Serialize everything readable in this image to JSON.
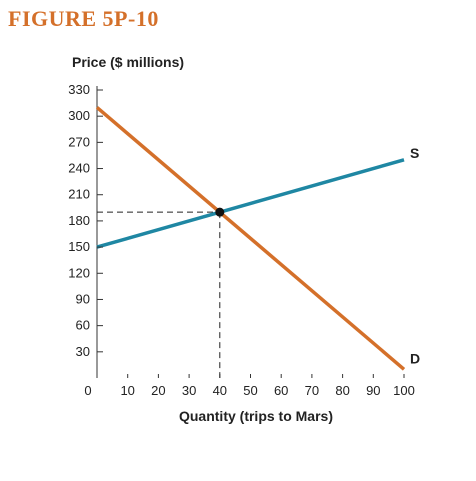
{
  "figure_label": "FIGURE 5P-10",
  "colors": {
    "supply": "#1f87a3",
    "demand": "#d4702a",
    "axis": "#333333",
    "title": "#d4702a"
  },
  "chart_data": {
    "type": "line",
    "title": "FIGURE 5P-10",
    "xlabel": "Quantity (trips to Mars)",
    "ylabel": "Price ($ millions)",
    "xlim": [
      0,
      100
    ],
    "ylim": [
      0,
      330
    ],
    "x_ticks": [
      0,
      10,
      20,
      30,
      40,
      50,
      60,
      70,
      80,
      90,
      100
    ],
    "y_ticks": [
      30,
      60,
      90,
      120,
      150,
      180,
      210,
      240,
      270,
      300,
      330
    ],
    "series": [
      {
        "name": "S",
        "x": [
          0,
          100
        ],
        "y": [
          150,
          250
        ]
      },
      {
        "name": "D",
        "x": [
          0,
          100
        ],
        "y": [
          310,
          10
        ]
      }
    ],
    "equilibrium": {
      "x": 40,
      "y": 190
    },
    "grid": false
  }
}
